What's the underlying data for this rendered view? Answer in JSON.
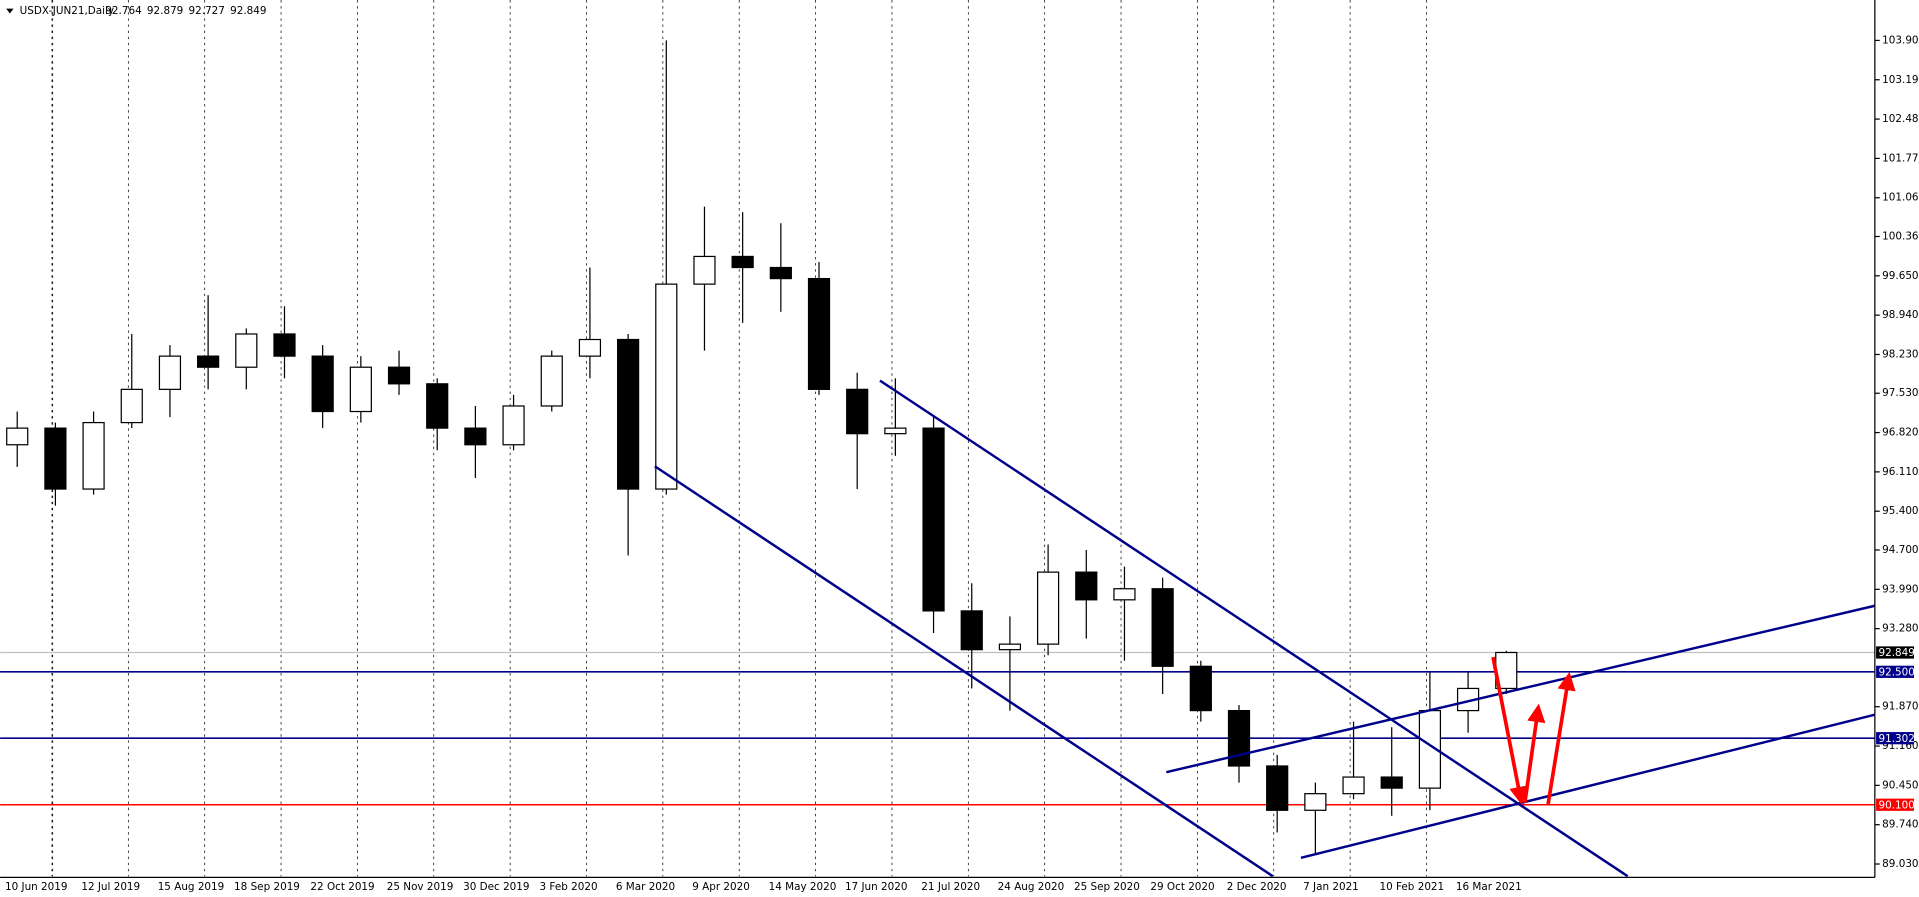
{
  "chart_data": {
    "type": "candlestick",
    "title": "USDX-JUN21,Daily",
    "ohlc_text": [
      92.764,
      92.879,
      92.727,
      92.849
    ],
    "categories": [
      "10 Jun 2019",
      null,
      "12 Jul 2019",
      null,
      "15 Aug 2019",
      null,
      "18 Sep 2019",
      null,
      "22 Oct 2019",
      null,
      "25 Nov 2019",
      null,
      "30 Dec 2019",
      null,
      "3 Feb 2020",
      null,
      "6 Mar 2020",
      null,
      "9 Apr 2020",
      null,
      "14 May 2020",
      null,
      "17 Jun 2020",
      null,
      "21 Jul 2020",
      null,
      "24 Aug 2020",
      null,
      "25 Sep 2020",
      null,
      "29 Oct 2020",
      null,
      "2 Dec 2020",
      null,
      "7 Jan 2021",
      null,
      "10 Feb 2021",
      null,
      "16 Mar 2021",
      null
    ],
    "open": [
      96.6,
      96.9,
      95.8,
      97.0,
      97.6,
      98.2,
      98.0,
      98.6,
      98.2,
      97.2,
      98.0,
      97.7,
      96.9,
      96.6,
      97.3,
      98.2,
      98.5,
      95.8,
      99.5,
      100.0,
      99.8,
      99.6,
      97.6,
      96.8,
      96.9,
      93.6,
      92.9,
      93.0,
      94.3,
      93.8,
      94.0,
      92.6,
      91.8,
      90.8,
      90.0,
      90.3,
      90.6,
      90.4,
      91.8,
      92.2
    ],
    "high": [
      97.2,
      97.0,
      97.2,
      98.6,
      98.4,
      99.3,
      98.7,
      99.1,
      98.4,
      98.2,
      98.3,
      97.8,
      97.3,
      97.5,
      98.3,
      99.8,
      98.6,
      103.9,
      100.9,
      100.8,
      100.6,
      99.9,
      97.9,
      97.8,
      97.1,
      94.1,
      93.5,
      94.8,
      94.7,
      94.4,
      94.2,
      92.7,
      91.9,
      91.0,
      90.5,
      91.6,
      91.5,
      92.5,
      92.5,
      92.88
    ],
    "low": [
      96.2,
      95.5,
      95.7,
      96.9,
      97.1,
      97.6,
      97.6,
      97.8,
      96.9,
      97.0,
      97.5,
      96.5,
      96.0,
      96.5,
      97.2,
      97.8,
      94.6,
      95.7,
      98.3,
      98.8,
      99.0,
      97.5,
      95.8,
      96.4,
      93.2,
      92.2,
      91.8,
      92.8,
      93.1,
      92.7,
      92.1,
      91.6,
      90.5,
      89.6,
      89.2,
      90.2,
      89.9,
      90.0,
      91.4,
      92.1
    ],
    "close": [
      96.9,
      95.8,
      97.0,
      97.6,
      98.2,
      98.0,
      98.6,
      98.2,
      97.2,
      98.0,
      97.7,
      96.9,
      96.6,
      97.3,
      98.2,
      98.5,
      95.8,
      99.5,
      100.0,
      99.8,
      99.6,
      97.6,
      96.8,
      96.9,
      93.6,
      92.9,
      93.0,
      94.3,
      93.8,
      94.0,
      92.6,
      91.8,
      90.8,
      90.0,
      90.3,
      90.6,
      90.4,
      91.8,
      92.2,
      92.849
    ],
    "ylim": [
      88.81,
      104.63
    ],
    "yticks": [
      {
        "value": 103.9,
        "label": "103.900"
      },
      {
        "value": 103.19,
        "label": "103.190"
      },
      {
        "value": 102.48,
        "label": "102.480"
      },
      {
        "value": 101.77,
        "label": "101.770"
      },
      {
        "value": 101.06,
        "label": "101.060"
      },
      {
        "value": 100.36,
        "label": "100.360"
      },
      {
        "value": 99.65,
        "label": "99.650"
      },
      {
        "value": 98.94,
        "label": "98.940"
      },
      {
        "value": 98.23,
        "label": "98.230"
      },
      {
        "value": 97.53,
        "label": "97.530"
      },
      {
        "value": 96.82,
        "label": "96.820"
      },
      {
        "value": 96.11,
        "label": "96.110"
      },
      {
        "value": 95.4,
        "label": "95.400"
      },
      {
        "value": 94.7,
        "label": "94.700"
      },
      {
        "value": 93.99,
        "label": "93.990"
      },
      {
        "value": 93.28,
        "label": "93.280"
      },
      {
        "value": 91.87,
        "label": "91.870"
      },
      {
        "value": 91.16,
        "label": "91.160"
      },
      {
        "value": 90.45,
        "label": "90.450"
      },
      {
        "value": 89.74,
        "label": "89.740"
      },
      {
        "value": 89.03,
        "label": "89.030"
      }
    ],
    "price_lines": [
      {
        "value": 92.849,
        "label": "92.849",
        "color": "#000000"
      },
      {
        "value": 92.5,
        "label": "92.500",
        "color": "#00008b"
      },
      {
        "value": 91.302,
        "label": "91.302",
        "color": "#00008b"
      },
      {
        "value": 90.1,
        "label": "90.100",
        "color": "#ff0000"
      }
    ],
    "grid": true
  }
}
